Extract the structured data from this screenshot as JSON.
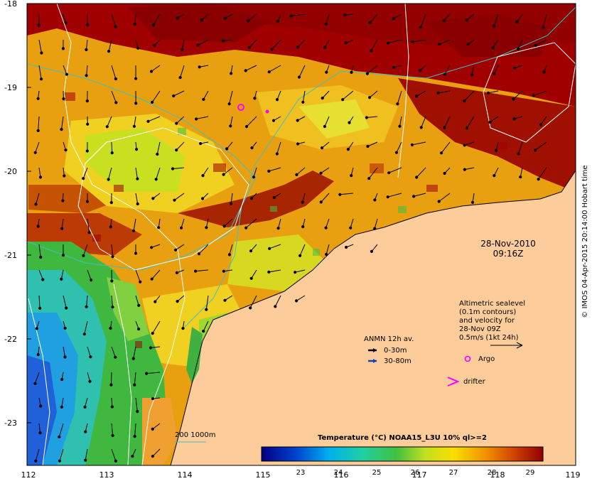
{
  "map": {
    "date": "28-Nov-2010",
    "time": "09:16Z",
    "lon_ticks": [
      "112",
      "113",
      "114",
      "115",
      "116",
      "117",
      "118",
      "119"
    ],
    "lat_ticks": [
      "-18",
      "-19",
      "-20",
      "-21",
      "-22",
      "-23"
    ],
    "altimetric_note": [
      "Altimetric sealevel",
      "(0.1m contours)",
      "and velocity for",
      "28-Nov 09Z",
      "0.5m/s (1kt 24h)"
    ],
    "anmn_title": "ANMN 12h av.",
    "anmn_shallow": "0-30m",
    "anmn_deep": "30-80m",
    "argo_label": "Argo",
    "drifter_label": "drifter",
    "isobath_label": "200  1000m",
    "colorbar_title": "Temperature (°C) NOAA15_L3U 10% ql>=2",
    "colorbar_ticks": [
      "23",
      "24",
      "25",
      "26",
      "27",
      "28",
      "29"
    ],
    "credit": "© IMOS 04-Apr-2015 20:14:00 Hobart time",
    "colors": {
      "land": "#fccc9a",
      "hot": "#a00000",
      "warm": "#f0a000",
      "coolgreen": "#50c040",
      "cool": "#2070f0"
    }
  }
}
